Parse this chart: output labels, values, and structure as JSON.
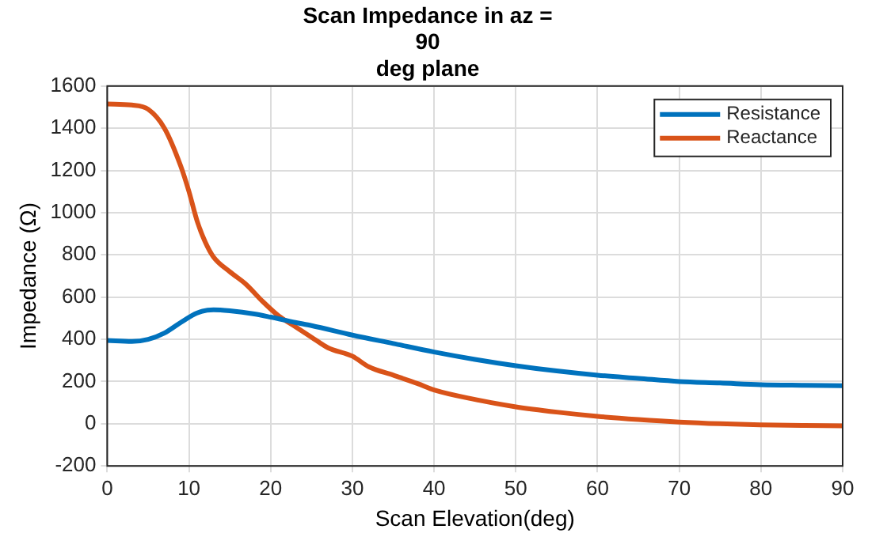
{
  "chart_data": {
    "type": "line",
    "title": "Scan Impedance in az =\n90\ndeg plane",
    "xlabel": "Scan Elevation(deg)",
    "ylabel": "Impedance (Ω)",
    "xlim": [
      0,
      90
    ],
    "xticks": [
      0,
      10,
      20,
      30,
      40,
      50,
      60,
      70,
      80,
      90
    ],
    "ylim": [
      -200,
      1600
    ],
    "yticks": [
      -200,
      0,
      200,
      400,
      600,
      800,
      1000,
      1200,
      1400,
      1600
    ],
    "grid": true,
    "legend": "top right",
    "marker": "none",
    "line_style": "solid",
    "series": [
      {
        "name": "Resistance",
        "color": "#0072bd",
        "x": [
          0,
          3,
          5,
          7,
          9,
          11,
          13,
          15,
          18,
          20,
          23,
          25,
          30,
          35,
          40,
          45,
          50,
          55,
          60,
          65,
          70,
          75,
          80,
          85,
          90
        ],
        "values": [
          395,
          390,
          400,
          430,
          480,
          525,
          540,
          535,
          520,
          505,
          480,
          465,
          420,
          380,
          340,
          305,
          275,
          250,
          230,
          215,
          200,
          193,
          185,
          182,
          180
        ]
      },
      {
        "name": "Reactance",
        "color": "#d95319",
        "x": [
          0,
          3,
          5,
          7,
          9,
          10,
          11,
          12,
          13,
          15,
          17,
          19,
          21,
          23,
          25,
          27,
          30,
          32,
          35,
          38,
          40,
          45,
          50,
          55,
          60,
          65,
          70,
          75,
          80,
          85,
          90
        ],
        "values": [
          1515,
          1510,
          1490,
          1400,
          1220,
          1100,
          960,
          860,
          790,
          720,
          660,
          580,
          510,
          460,
          410,
          360,
          320,
          270,
          230,
          190,
          160,
          115,
          80,
          55,
          35,
          20,
          8,
          0,
          -5,
          -8,
          -10
        ]
      }
    ]
  }
}
